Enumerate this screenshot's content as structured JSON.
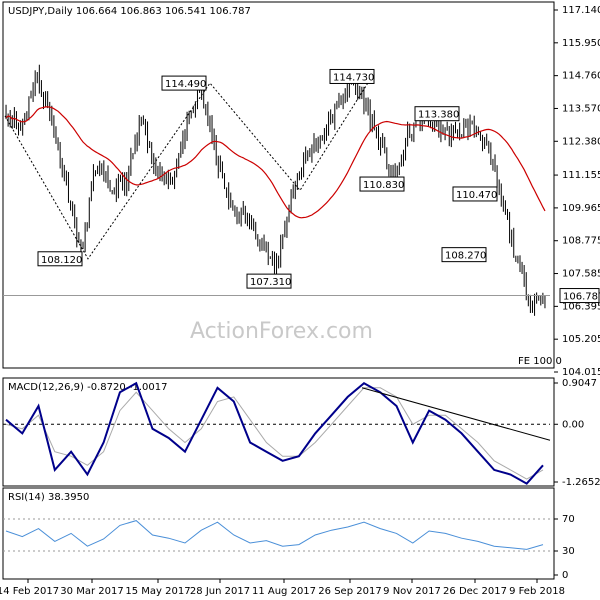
{
  "header": {
    "title": "USDJPY,Daily  106.664 106.863 106.541 106.787"
  },
  "watermark": "ActionForex.com",
  "fe_label": "FE 100.0",
  "current_price_label": "106.787",
  "colors": {
    "candle": "#000000",
    "ma": "#cc0000",
    "macd": "#00008b",
    "signal": "#aaaaaa",
    "rsi": "#4a8fd8",
    "trend": "#000000"
  },
  "chart_data": [
    {
      "type": "candlestick",
      "name": "price",
      "x_ticks": [
        "14 Feb 2017",
        "30 Mar 2017",
        "15 May 2017",
        "28 Jun 2017",
        "11 Aug 2017",
        "26 Sep 2017",
        "9 Nov 2017",
        "26 Dec 2017",
        "9 Feb 2018"
      ],
      "y_ticks": [
        "117.140",
        "115.950",
        "114.760",
        "113.570",
        "112.380",
        "111.155",
        "109.965",
        "108.775",
        "107.585",
        "106.395",
        "105.205",
        "104.015"
      ],
      "ylim": [
        104.015,
        117.14
      ],
      "annotations": [
        {
          "text": "114.490",
          "value": 114.49
        },
        {
          "text": "114.730",
          "value": 114.73
        },
        {
          "text": "113.380",
          "value": 113.38
        },
        {
          "text": "110.830",
          "value": 110.83
        },
        {
          "text": "110.470",
          "value": 110.47
        },
        {
          "text": "108.120",
          "value": 108.12
        },
        {
          "text": "108.270",
          "value": 108.27
        },
        {
          "text": "107.310",
          "value": 107.31
        }
      ],
      "current_price": 106.787,
      "key_closes": [
        113.5,
        112.8,
        114.8,
        113.3,
        110.9,
        108.3,
        111.5,
        110.6,
        110.8,
        113.1,
        111.4,
        110.9,
        112.7,
        114.3,
        111.9,
        110.0,
        109.6,
        108.9,
        107.7,
        110.3,
        111.8,
        112.5,
        113.4,
        114.6,
        113.8,
        112.2,
        111.0,
        112.8,
        113.3,
        112.8,
        112.6,
        113.0,
        112.4,
        110.4,
        108.3,
        106.5,
        106.8
      ]
    },
    {
      "type": "line",
      "name": "MACD",
      "title": "MACD(12,26,9) -0.8720 -1.0017",
      "y_ticks": [
        "0.9047",
        "0.00",
        "-1.2652"
      ],
      "ylim": [
        -1.2652,
        0.9047
      ],
      "series": [
        {
          "name": "macd",
          "values": [
            0.1,
            -0.2,
            0.4,
            -1.0,
            -0.6,
            -1.1,
            -0.4,
            0.7,
            0.9,
            -0.1,
            -0.3,
            -0.6,
            0.1,
            0.8,
            0.5,
            -0.4,
            -0.6,
            -0.8,
            -0.7,
            -0.2,
            0.2,
            0.6,
            0.9,
            0.7,
            0.4,
            -0.4,
            0.3,
            0.1,
            -0.2,
            -0.6,
            -1.0,
            -1.1,
            -1.3,
            -0.9
          ]
        },
        {
          "name": "signal",
          "values": [
            0.0,
            -0.1,
            0.2,
            -0.6,
            -0.7,
            -0.9,
            -0.6,
            0.3,
            0.7,
            0.3,
            -0.1,
            -0.4,
            -0.1,
            0.5,
            0.6,
            0.1,
            -0.4,
            -0.7,
            -0.7,
            -0.4,
            0.0,
            0.4,
            0.8,
            0.8,
            0.6,
            0.0,
            0.2,
            0.2,
            -0.1,
            -0.4,
            -0.8,
            -1.0,
            -1.2,
            -1.0
          ]
        }
      ]
    },
    {
      "type": "line",
      "name": "RSI",
      "title": "RSI(14) 38.3950",
      "y_ticks": [
        "70",
        "30",
        "0"
      ],
      "ylim": [
        0,
        100
      ],
      "series": [
        {
          "name": "rsi",
          "values": [
            55,
            48,
            58,
            42,
            52,
            36,
            45,
            62,
            68,
            50,
            46,
            40,
            56,
            66,
            50,
            40,
            43,
            36,
            38,
            50,
            56,
            60,
            66,
            58,
            52,
            40,
            55,
            52,
            46,
            42,
            36,
            34,
            32,
            38
          ]
        }
      ]
    }
  ]
}
